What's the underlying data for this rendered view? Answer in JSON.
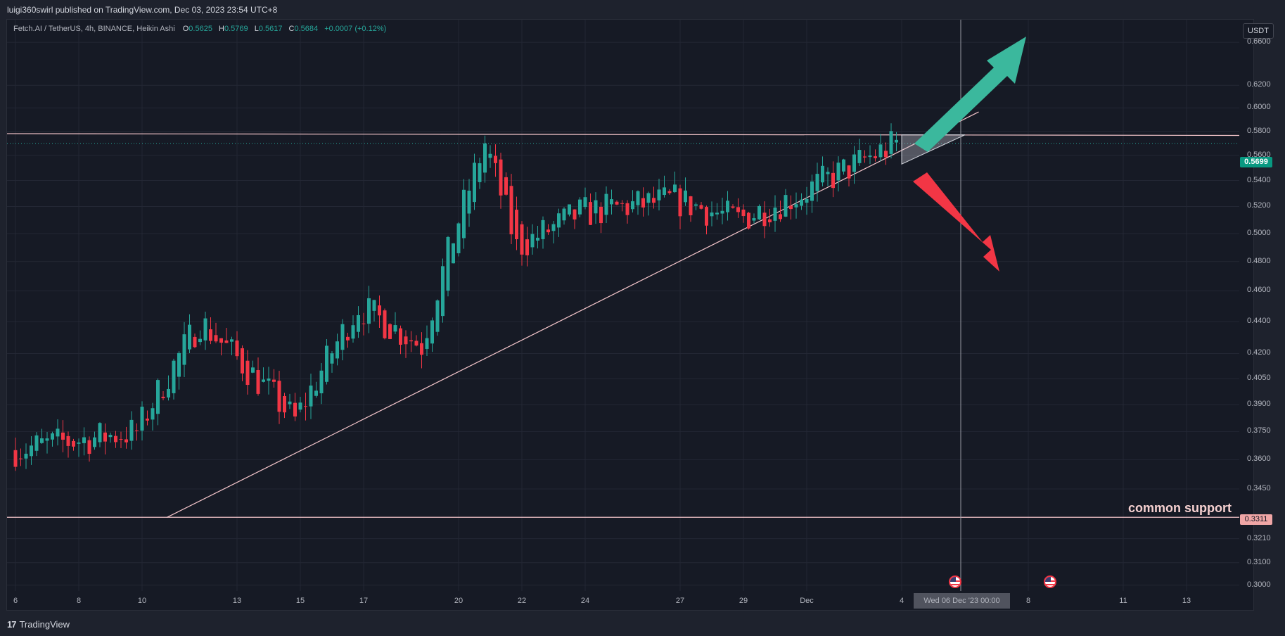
{
  "header": {
    "publisher_line": "luigi360swirl published on TradingView.com, Dec 03, 2023 23:54 UTC+8"
  },
  "legend": {
    "symbol_line": "Fetch.AI / TetherUS, 4h, BINANCE, Heikin Ashi",
    "open_label": "O",
    "open": "0.5625",
    "high_label": "H",
    "high": "0.5769",
    "low_label": "L",
    "low": "0.5617",
    "close_label": "C",
    "close": "0.5684",
    "change": "+0.0007 (+0.12%)"
  },
  "currency_button": "USDT",
  "price_axis": {
    "labels": [
      "0.6600",
      "0.6200",
      "0.6000",
      "0.5800",
      "0.5600",
      "0.5400",
      "0.5200",
      "0.5000",
      "0.4800",
      "0.4600",
      "0.4400",
      "0.4200",
      "0.4050",
      "0.3900",
      "0.3750",
      "0.3600",
      "0.3450",
      "0.3210",
      "0.3100",
      "0.3000"
    ],
    "current_price_tag": "0.5699",
    "support_price_tag": "0.3311"
  },
  "time_axis": {
    "labels": [
      "6",
      "8",
      "10",
      "13",
      "15",
      "17",
      "20",
      "22",
      "24",
      "27",
      "29",
      "Dec",
      "4",
      "8",
      "11",
      "13"
    ],
    "crosshair_label": "Wed 06 Dec '23   00:00"
  },
  "annotations": {
    "support_text": "common support"
  },
  "footer": {
    "brand": "TradingView",
    "logo": "17"
  },
  "colors": {
    "up": "#26a69a",
    "down": "#f23645",
    "trendline": "#f5c6cb",
    "arrow_up": "#3bb89d",
    "arrow_down": "#f23645",
    "background": "#161a25",
    "grid": "#232734"
  },
  "chart_data": {
    "type": "candlestick",
    "title": "Fetch.AI / TetherUS, 4h, BINANCE, Heikin Ashi",
    "ylim": [
      0.2975,
      0.682
    ],
    "y_scale": "log",
    "grid": true,
    "last_price": 0.5699,
    "support_level": 0.3311,
    "resistance_level": 0.577,
    "trendline": [
      {
        "x": "Nov 11",
        "y": 0.331
      },
      {
        "x": "Dec 4",
        "y": 0.554
      }
    ],
    "candle_series": [
      {
        "from": "Nov 6",
        "to": "Nov 10",
        "start": 0.365,
        "end": 0.375
      },
      {
        "from": "Nov 10",
        "to": "Nov 12",
        "start": 0.375,
        "end": 0.44
      },
      {
        "from": "Nov 12",
        "to": "Nov 15",
        "start": 0.44,
        "end": 0.381
      },
      {
        "from": "Nov 15",
        "to": "Nov 17",
        "start": 0.381,
        "end": 0.45
      },
      {
        "from": "Nov 17",
        "to": "Nov 19",
        "start": 0.45,
        "end": 0.425
      },
      {
        "from": "Nov 19",
        "to": "Nov 21",
        "start": 0.425,
        "end": 0.57
      },
      {
        "from": "Nov 21",
        "to": "Nov 22",
        "start": 0.57,
        "end": 0.49
      },
      {
        "from": "Nov 22",
        "to": "Nov 24",
        "start": 0.49,
        "end": 0.515
      },
      {
        "from": "Nov 24",
        "to": "Nov 27",
        "start": 0.515,
        "end": 0.525
      },
      {
        "from": "Nov 27",
        "to": "Nov 29",
        "start": 0.525,
        "end": 0.51
      },
      {
        "from": "Nov 29",
        "to": "Dec 1",
        "start": 0.51,
        "end": 0.53
      },
      {
        "from": "Dec 1",
        "to": "Dec 4",
        "start": 0.53,
        "end": 0.5699
      }
    ]
  }
}
